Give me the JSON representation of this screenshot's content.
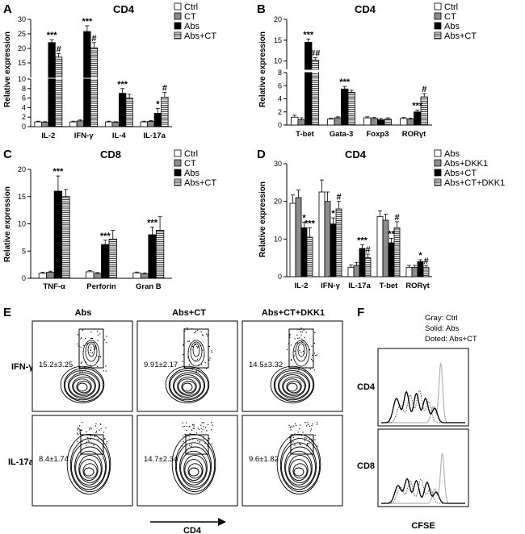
{
  "chart_data": [
    {
      "panel": "A",
      "type": "bar",
      "title": "CD4",
      "ylabel": "Relative expression",
      "categories": [
        "IL-2",
        "IFN-γ",
        "IL-4",
        "IL-17a"
      ],
      "series": [
        {
          "name": "Ctrl",
          "values": [
            1.0,
            1.0,
            1.0,
            1.0
          ],
          "errors": [
            0.15,
            0.15,
            0.15,
            0.15
          ]
        },
        {
          "name": "CT",
          "values": [
            0.9,
            1.2,
            0.9,
            1.1
          ],
          "errors": [
            0.15,
            0.2,
            0.15,
            0.2
          ]
        },
        {
          "name": "Abs",
          "values": [
            22.0,
            25.8,
            7.0,
            2.8
          ],
          "errors": [
            1.0,
            2.0,
            1.0,
            1.0
          ]
        },
        {
          "name": "Abs+CT",
          "values": [
            17.0,
            20.2,
            6.0,
            6.2
          ],
          "errors": [
            1.2,
            1.8,
            0.8,
            1.0
          ]
        }
      ],
      "segments": [
        {
          "range": [
            0,
            10
          ],
          "ticks": [
            0,
            2,
            4,
            6,
            8,
            10
          ]
        },
        {
          "range": [
            10,
            30
          ],
          "ticks": [
            15,
            20,
            25,
            30
          ]
        }
      ],
      "annotations": [
        {
          "cat": 0,
          "series": 2,
          "text": "***"
        },
        {
          "cat": 0,
          "series": 3,
          "text": "#"
        },
        {
          "cat": 1,
          "series": 2,
          "text": "***"
        },
        {
          "cat": 1,
          "series": 3,
          "text": "#"
        },
        {
          "cat": 2,
          "series": 2,
          "text": "***"
        },
        {
          "cat": 3,
          "series": 2,
          "text": "*"
        },
        {
          "cat": 3,
          "series": 3,
          "text": "#"
        }
      ]
    },
    {
      "panel": "B",
      "type": "bar",
      "title": "CD4",
      "ylabel": "Relative expression",
      "categories": [
        "T-bet",
        "Gata-3",
        "Foxp3",
        "RORγt"
      ],
      "series": [
        {
          "name": "Ctrl",
          "values": [
            1.2,
            0.9,
            1.1,
            1.0
          ],
          "errors": [
            0.3,
            0.15,
            0.15,
            0.15
          ]
        },
        {
          "name": "CT",
          "values": [
            0.8,
            1.1,
            1.0,
            0.9
          ],
          "errors": [
            0.3,
            0.15,
            0.15,
            0.15
          ]
        },
        {
          "name": "Abs",
          "values": [
            14.5,
            5.5,
            0.8,
            2.0
          ],
          "errors": [
            0.8,
            0.4,
            0.2,
            0.3
          ]
        },
        {
          "name": "Abs+CT",
          "values": [
            10.2,
            5.0,
            0.9,
            4.3
          ],
          "errors": [
            0.6,
            0.3,
            0.2,
            0.5
          ]
        }
      ],
      "segments": [
        {
          "range": [
            0,
            8
          ],
          "ticks": [
            0,
            2,
            4,
            6,
            8
          ]
        },
        {
          "range": [
            8,
            20
          ],
          "ticks": [
            10,
            15,
            20
          ]
        }
      ],
      "annotations": [
        {
          "cat": 0,
          "series": 2,
          "text": "***"
        },
        {
          "cat": 0,
          "series": 3,
          "text": "##"
        },
        {
          "cat": 1,
          "series": 2,
          "text": "***"
        },
        {
          "cat": 3,
          "series": 2,
          "text": "***"
        },
        {
          "cat": 3,
          "series": 3,
          "text": "#"
        }
      ]
    },
    {
      "panel": "C",
      "type": "bar",
      "title": "CD8",
      "ylabel": "Relative expression",
      "categories": [
        "TNF-α",
        "Perforin",
        "Gran B"
      ],
      "series": [
        {
          "name": "Ctrl",
          "values": [
            0.9,
            1.2,
            1.0
          ],
          "errors": [
            0.2,
            0.2,
            0.15
          ]
        },
        {
          "name": "CT",
          "values": [
            1.1,
            0.9,
            0.8
          ],
          "errors": [
            0.2,
            0.15,
            0.2
          ]
        },
        {
          "name": "Abs",
          "values": [
            16.0,
            6.2,
            8.0
          ],
          "errors": [
            2.8,
            0.8,
            1.4
          ]
        },
        {
          "name": "Abs+CT",
          "values": [
            15.0,
            7.2,
            8.8
          ],
          "errors": [
            1.3,
            1.6,
            2.5
          ]
        }
      ],
      "ylim": [
        0,
        20
      ],
      "ticks": [
        0,
        5,
        10,
        15,
        20
      ],
      "annotations": [
        {
          "cat": 0,
          "series": 2,
          "text": "***"
        },
        {
          "cat": 1,
          "series": 2,
          "text": "***"
        },
        {
          "cat": 2,
          "series": 2,
          "text": "***"
        }
      ]
    },
    {
      "panel": "D",
      "type": "bar",
      "title": "CD4",
      "ylabel": "Relative expression",
      "categories": [
        "IL-2",
        "IFN-γ",
        "IL-17a",
        "T-bet",
        "RORγt"
      ],
      "series": [
        {
          "name": "Abs",
          "values": [
            19.5,
            22.5,
            2.5,
            16.0,
            2.5
          ],
          "errors": [
            2.2,
            3.2,
            0.6,
            1.5,
            0.5
          ]
        },
        {
          "name": "Abs+DKK1",
          "values": [
            21.0,
            20.0,
            3.0,
            15.0,
            2.5
          ],
          "errors": [
            2.0,
            2.5,
            0.8,
            1.6,
            0.5
          ]
        },
        {
          "name": "Abs+CT",
          "values": [
            13.0,
            14.0,
            7.5,
            9.0,
            4.0
          ],
          "errors": [
            1.5,
            1.6,
            1.0,
            1.2,
            0.5
          ]
        },
        {
          "name": "Abs+CT+DKK1",
          "values": [
            10.5,
            18.0,
            5.0,
            13.0,
            2.5
          ],
          "errors": [
            2.5,
            2.0,
            1.0,
            1.6,
            0.5
          ]
        }
      ],
      "ylim": [
        0,
        30
      ],
      "ticks": [
        0,
        10,
        20,
        30
      ],
      "annotations": [
        {
          "cat": 0,
          "series": 2,
          "text": "*"
        },
        {
          "cat": 0,
          "series": 3,
          "text": "***"
        },
        {
          "cat": 1,
          "series": 2,
          "text": "*"
        },
        {
          "cat": 1,
          "series": 3,
          "text": "#"
        },
        {
          "cat": 2,
          "series": 2,
          "text": "***"
        },
        {
          "cat": 2,
          "series": 3,
          "text": "#"
        },
        {
          "cat": 3,
          "series": 2,
          "text": "**"
        },
        {
          "cat": 3,
          "series": 3,
          "text": "#"
        },
        {
          "cat": 4,
          "series": 2,
          "text": "*"
        },
        {
          "cat": 4,
          "series": 3,
          "text": "#"
        }
      ]
    }
  ],
  "panel_e": {
    "letter": "E",
    "columns": [
      "Abs",
      "Abs+CT",
      "Abs+CT+DKK1"
    ],
    "rows": [
      {
        "label": "IFN-γ",
        "values": [
          "15.2±3.25",
          "9.91±2.17",
          "14.5±3.32"
        ]
      },
      {
        "label": "IL-17a",
        "values": [
          "8.4±1.74",
          "14.7±2.34",
          "9.6±1.82"
        ]
      }
    ],
    "xlabel": "CD4"
  },
  "panel_f": {
    "letter": "F",
    "legend": [
      "Gray: Ctrl",
      "Solid: Abs",
      "Doted: Abs+CT"
    ],
    "rows": [
      "CD4",
      "CD8"
    ],
    "xlabel": "CFSE"
  },
  "colors": {
    "ctrl": "#ffffff",
    "ct": "#8c8c8c",
    "abs": "#000000",
    "hatch": "#000000",
    "gray_line": "#b4b4b4"
  }
}
